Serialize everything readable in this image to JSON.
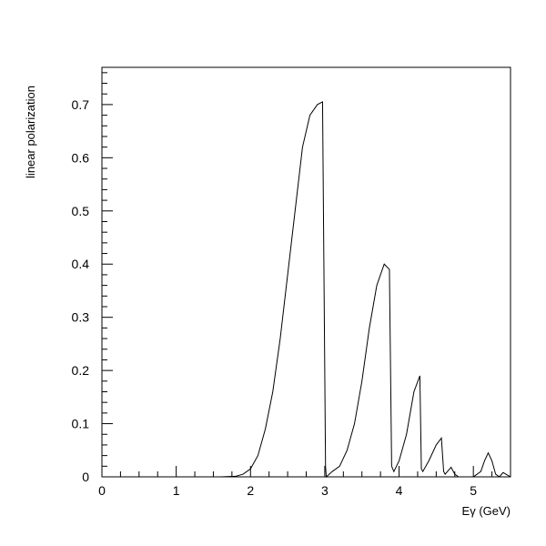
{
  "chart_data": {
    "type": "line",
    "xlabel": "Eγ (GeV)",
    "ylabel": "linear polarization",
    "xlim": [
      0,
      5.5
    ],
    "ylim": [
      0,
      0.77
    ],
    "x_ticks": [
      0,
      1,
      2,
      3,
      4,
      5
    ],
    "x_tick_labels": [
      "0",
      "1",
      "2",
      "3",
      "4",
      "5"
    ],
    "y_ticks": [
      0,
      0.1,
      0.2,
      0.3,
      0.4,
      0.5,
      0.6,
      0.7
    ],
    "y_tick_labels": [
      "0",
      "0.1",
      "0.2",
      "0.3",
      "0.4",
      "0.5",
      "0.6",
      "0.7"
    ],
    "grid": false,
    "series": [
      {
        "x": [
          1.6,
          1.8,
          1.9,
          2.0,
          2.1,
          2.2,
          2.3,
          2.4,
          2.5,
          2.6,
          2.7,
          2.8,
          2.9,
          2.97,
          3.01,
          3.02,
          3.1,
          3.2,
          3.3,
          3.4,
          3.5,
          3.6,
          3.7,
          3.8,
          3.87,
          3.9,
          3.93,
          4.0,
          4.1,
          4.2,
          4.28,
          4.3,
          4.32,
          4.4,
          4.5,
          4.57,
          4.6,
          4.62,
          4.7,
          4.75,
          4.8,
          5.0,
          5.1,
          5.15,
          5.2,
          5.25,
          5.3,
          5.35,
          5.4,
          5.5
        ],
        "y": [
          0.0,
          0.001,
          0.005,
          0.015,
          0.04,
          0.09,
          0.16,
          0.26,
          0.38,
          0.5,
          0.62,
          0.68,
          0.7,
          0.705,
          0.02,
          0.0,
          0.01,
          0.02,
          0.05,
          0.1,
          0.18,
          0.28,
          0.36,
          0.4,
          0.39,
          0.02,
          0.01,
          0.03,
          0.08,
          0.16,
          0.19,
          0.015,
          0.01,
          0.03,
          0.06,
          0.073,
          0.01,
          0.005,
          0.018,
          0.005,
          0.0,
          0.0,
          0.01,
          0.03,
          0.045,
          0.03,
          0.005,
          0.0,
          0.008,
          0.0
        ]
      }
    ]
  }
}
